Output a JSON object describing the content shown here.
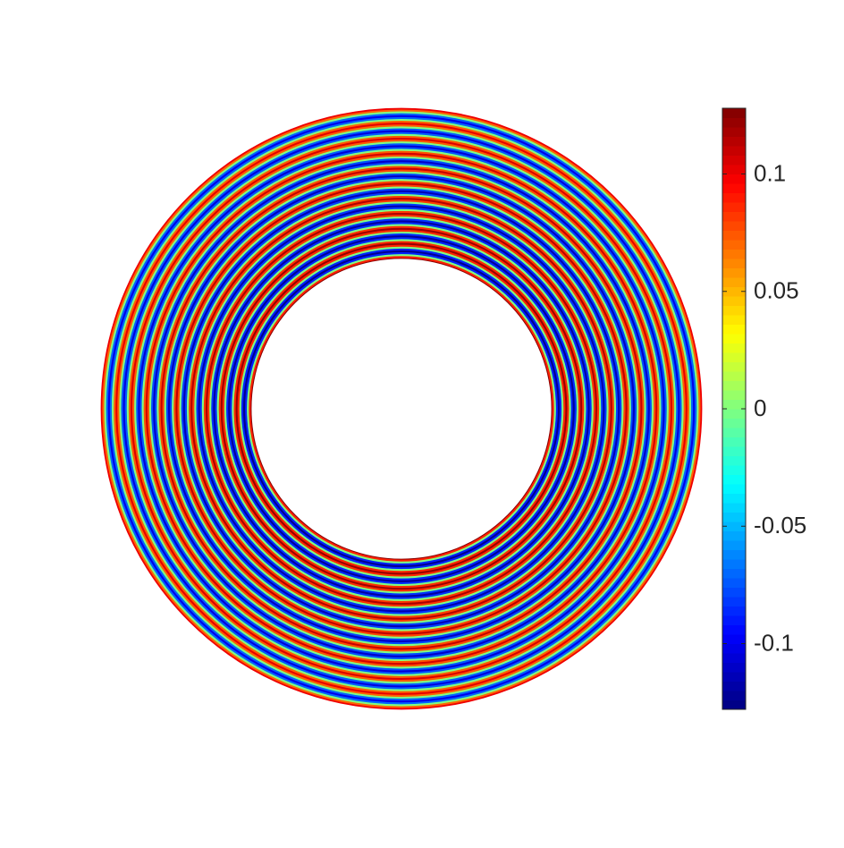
{
  "chart_data": {
    "type": "annulus",
    "rlim": [
      0.5,
      1
    ],
    "r": [
      0.5,
      0.50625,
      0.5125,
      0.51875,
      0.525,
      0.53125,
      0.5375,
      0.54375,
      0.55,
      0.55625,
      0.5625,
      0.56875,
      0.575,
      0.58125,
      0.5875,
      0.59375,
      0.6,
      0.60625,
      0.6125,
      0.61875,
      0.625,
      0.63125,
      0.6375,
      0.64375,
      0.65,
      0.65625,
      0.6625,
      0.66875,
      0.675,
      0.68125,
      0.6875,
      0.69375,
      0.7,
      0.70625,
      0.7125,
      0.71875,
      0.725,
      0.73125,
      0.7375,
      0.74375,
      0.75,
      0.75625,
      0.7625,
      0.76875,
      0.775,
      0.78125,
      0.7875,
      0.79375,
      0.8,
      0.80625,
      0.8125,
      0.81875,
      0.825,
      0.83125,
      0.8375,
      0.84375,
      0.85,
      0.85625,
      0.8625,
      0.86875,
      0.875,
      0.88125,
      0.8875,
      0.89375,
      0.9,
      0.90625,
      0.9125,
      0.91875,
      0.925,
      0.93125,
      0.9375,
      0.94375,
      0.95,
      0.95625,
      0.9625,
      0.96875,
      0.975,
      0.98125,
      0.9875,
      0.99375,
      1
    ],
    "values": [
      0.125,
      0.088,
      0,
      -0.088,
      -0.124,
      -0.087,
      0,
      0.087,
      0.122,
      0.086,
      0,
      -0.086,
      -0.121,
      -0.085,
      0,
      0.085,
      0.12,
      0.084,
      0,
      -0.084,
      -0.119,
      -0.084,
      0,
      0.083,
      0.117,
      0.083,
      0,
      -0.082,
      -0.116,
      -0.082,
      0,
      0.081,
      0.115,
      0.081,
      0,
      -0.08,
      -0.114,
      -0.08,
      0,
      0.08,
      0.112,
      0.079,
      0,
      -0.079,
      -0.111,
      -0.078,
      0,
      0.078,
      0.11,
      0.077,
      0,
      -0.077,
      -0.109,
      -0.076,
      0,
      0.076,
      0.107,
      0.075,
      0,
      -0.075,
      -0.106,
      -0.074,
      0,
      0.074,
      0.105,
      0.074,
      0,
      -0.073,
      -0.104,
      -0.073,
      0,
      0.072,
      0.102,
      0.072,
      0,
      -0.071,
      -0.101,
      -0.071,
      0,
      0.071,
      0.1
    ],
    "colormap": "jet",
    "clim": [
      -0.128,
      0.128
    ],
    "cticks": [
      -0.1,
      -0.05,
      0,
      0.05,
      0.1
    ]
  }
}
